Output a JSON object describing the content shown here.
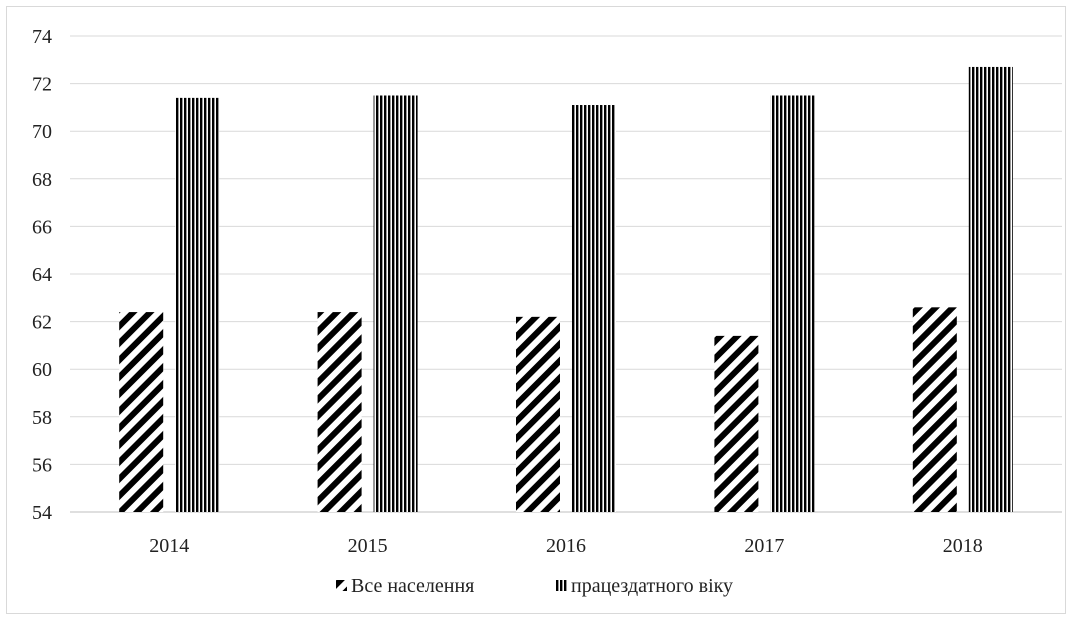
{
  "chart_data": {
    "type": "bar",
    "categories": [
      "2014",
      "2015",
      "2016",
      "2017",
      "2018"
    ],
    "series": [
      {
        "name": "Все населення",
        "values": [
          62.4,
          62.4,
          62.2,
          61.4,
          62.6
        ],
        "pattern": "diagonal-hatch",
        "color": "#000000"
      },
      {
        "name": "працездатного віку",
        "values": [
          71.4,
          71.5,
          71.1,
          71.5,
          72.7
        ],
        "pattern": "vertical-stripes",
        "color": "#000000"
      }
    ],
    "ylim": [
      54,
      74
    ],
    "yticks": [
      "54",
      "56",
      "58",
      "60",
      "62",
      "64",
      "66",
      "68",
      "70",
      "72",
      "74"
    ],
    "grid": true,
    "legend": "bottom"
  }
}
